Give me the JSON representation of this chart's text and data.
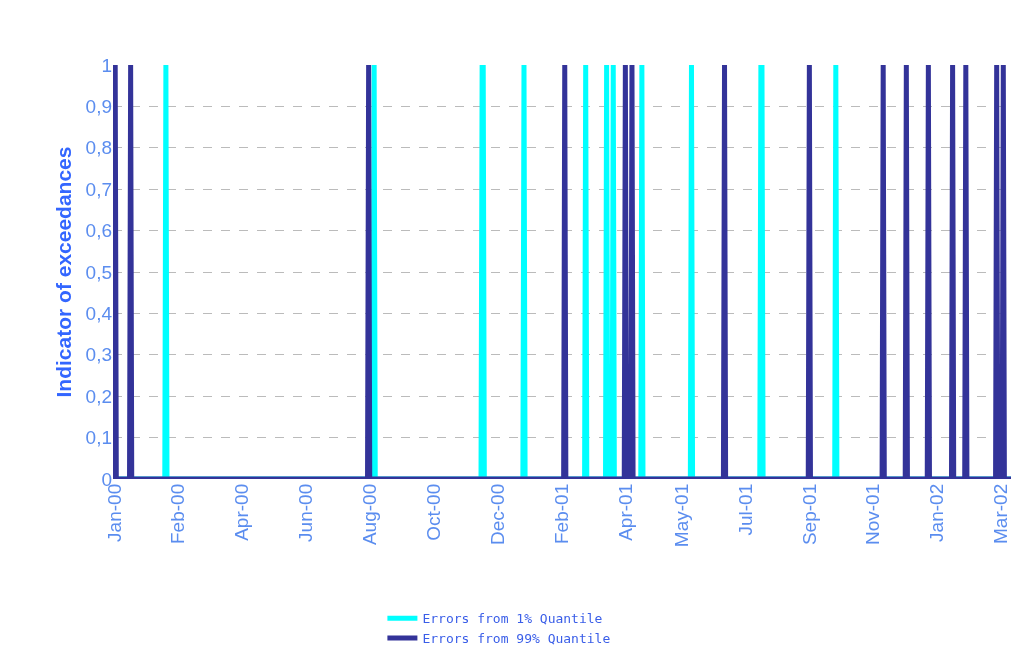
{
  "chart_data": {
    "type": "line",
    "ylabel": "Indicator of exceedances",
    "xlim": [
      "2000-01-01",
      "2002-03-26"
    ],
    "xticks": [
      {
        "value": "2000-01-03",
        "label": "Jan-00"
      },
      {
        "value": "2000-02-29",
        "label": "Feb-00"
      },
      {
        "value": "2000-04-27",
        "label": "Apr-00"
      },
      {
        "value": "2000-06-24",
        "label": "Jun-00"
      },
      {
        "value": "2000-08-21",
        "label": "Aug-00"
      },
      {
        "value": "2000-10-18",
        "label": "Oct-00"
      },
      {
        "value": "2000-12-15",
        "label": "Dec-00"
      },
      {
        "value": "2001-02-11",
        "label": "Feb-01"
      },
      {
        "value": "2001-04-10",
        "label": "Apr-01"
      },
      {
        "value": "2001-05-31",
        "label": "May-01"
      },
      {
        "value": "2001-07-28",
        "label": "Jul-01"
      },
      {
        "value": "2001-09-24",
        "label": "Sep-01"
      },
      {
        "value": "2001-11-21",
        "label": "Nov-01"
      },
      {
        "value": "2002-01-18",
        "label": "Jan-02"
      },
      {
        "value": "2002-03-17",
        "label": "Mar-02"
      }
    ],
    "ylim": [
      0,
      1
    ],
    "yticks": [
      {
        "value": 0,
        "label": "0"
      },
      {
        "value": 0.1,
        "label": "0,1"
      },
      {
        "value": 0.2,
        "label": "0,2"
      },
      {
        "value": 0.3,
        "label": "0,3"
      },
      {
        "value": 0.4,
        "label": "0,4"
      },
      {
        "value": 0.5,
        "label": "0,5"
      },
      {
        "value": 0.6,
        "label": "0,6"
      },
      {
        "value": 0.7,
        "label": "0,7"
      },
      {
        "value": 0.8,
        "label": "0,8"
      },
      {
        "value": 0.9,
        "label": "0,9"
      },
      {
        "value": 1,
        "label": "1"
      }
    ],
    "grid": "y",
    "legend": "bottom",
    "marker": "none",
    "line_style": "solid",
    "series": [
      {
        "name": "Errors from 1% Quantile",
        "color": "#00ffff",
        "x": [
          "2000-01-01",
          "2000-02-17",
          "2000-02-18",
          "2000-02-19",
          "2000-08-24",
          "2000-08-25",
          "2000-08-26",
          "2000-11-30",
          "2000-12-01",
          "2000-12-02",
          "2000-12-03",
          "2001-01-07",
          "2001-01-08",
          "2001-01-09",
          "2001-03-04",
          "2001-03-05",
          "2001-03-06",
          "2001-03-23",
          "2001-03-24",
          "2001-03-25",
          "2001-03-29",
          "2001-03-30",
          "2001-03-31",
          "2001-04-24",
          "2001-04-25",
          "2001-04-26",
          "2001-06-08",
          "2001-06-09",
          "2001-06-10",
          "2001-08-10",
          "2001-08-11",
          "2001-08-12",
          "2001-08-13",
          "2001-10-17",
          "2001-10-18",
          "2001-10-19",
          "2002-03-26"
        ],
        "values": [
          0,
          0,
          1,
          0,
          0,
          1,
          0,
          0,
          1,
          1,
          0,
          0,
          1,
          0,
          0,
          1,
          0,
          0,
          1,
          0,
          0,
          1,
          0,
          0,
          1,
          0,
          0,
          1,
          0,
          0,
          1,
          1,
          0,
          0,
          1,
          0,
          0
        ]
      },
      {
        "name": "Errors from 99% Quantile",
        "color": "#333399",
        "x": [
          "2000-01-02",
          "2000-01-03",
          "2000-01-04",
          "2000-01-16",
          "2000-01-17",
          "2000-01-18",
          "2000-08-19",
          "2000-08-20",
          "2000-08-21",
          "2001-02-13",
          "2001-02-14",
          "2001-02-15",
          "2001-04-09",
          "2001-04-10",
          "2001-04-11",
          "2001-04-15",
          "2001-04-16",
          "2001-04-17",
          "2001-07-08",
          "2001-07-09",
          "2001-07-10",
          "2001-09-23",
          "2001-09-24",
          "2001-09-25",
          "2001-11-29",
          "2001-11-30",
          "2001-12-01",
          "2001-12-20",
          "2001-12-21",
          "2001-12-22",
          "2002-01-09",
          "2002-01-10",
          "2002-01-11",
          "2002-01-31",
          "2002-02-01",
          "2002-02-02",
          "2002-02-12",
          "2002-02-13",
          "2002-02-14",
          "2002-03-12",
          "2002-03-13",
          "2002-03-14",
          "2002-03-18",
          "2002-03-19",
          "2002-03-20",
          "2002-03-26"
        ],
        "values": [
          0,
          1,
          0,
          0,
          1,
          0,
          0,
          1,
          0,
          0,
          1,
          0,
          0,
          1,
          0,
          0,
          1,
          0,
          0,
          1,
          0,
          0,
          1,
          0,
          0,
          1,
          0,
          0,
          1,
          0,
          0,
          1,
          0,
          0,
          1,
          0,
          0,
          1,
          0,
          0,
          1,
          0,
          0,
          1,
          0,
          0
        ]
      }
    ]
  }
}
